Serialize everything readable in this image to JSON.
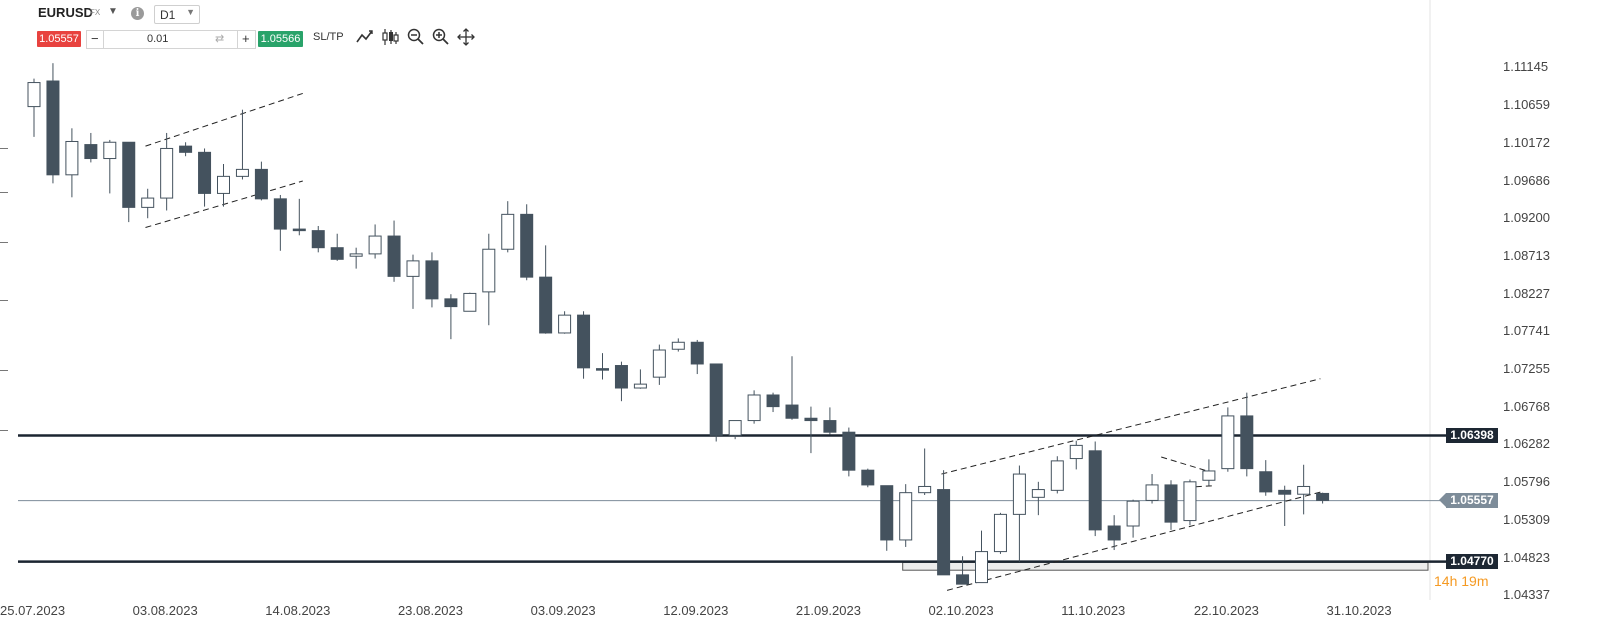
{
  "toolbar": {
    "symbol": "EURUSD",
    "market": "FX",
    "timeframe": "D1",
    "sell_price": "1.05557",
    "buy_price": "1.05566",
    "quantity": "0.01",
    "sltp_label": "SL/TP",
    "icons": [
      "chart-type-icon",
      "indicators-icon",
      "zoom-out-icon",
      "zoom-in-icon",
      "move-icon"
    ]
  },
  "colors": {
    "bear": "#44525e",
    "bull": "#ffffff",
    "sell": "#e8423f",
    "buy": "#29a36a",
    "timer": "#f59a23"
  },
  "chart_data": {
    "type": "candlestick",
    "title": "",
    "price_ticks": [
      "1.11145",
      "1.10659",
      "1.10172",
      "1.09686",
      "1.09200",
      "1.08713",
      "1.08227",
      "1.07741",
      "1.07255",
      "1.06768",
      "1.06282",
      "1.05796",
      "1.05309",
      "1.04823",
      "1.04337"
    ],
    "date_ticks": [
      "25.07.2023",
      "03.08.2023",
      "14.08.2023",
      "23.08.2023",
      "03.09.2023",
      "12.09.2023",
      "21.09.2023",
      "02.10.2023",
      "11.10.2023",
      "22.10.2023",
      "31.10.2023"
    ],
    "ylim": [
      1.0434,
      1.1137
    ],
    "horizontal_levels": [
      {
        "label": "1.06398",
        "value": 1.06398
      },
      {
        "label": "1.04770",
        "value": 1.0477
      }
    ],
    "current_price": {
      "label": "1.05557",
      "value": 1.05557
    },
    "support_zone": {
      "x_from_candle": 46,
      "x_to_candle": 73,
      "low": 1.0466,
      "high": 1.0476
    },
    "countdown": "14h 19m",
    "trendlines": [
      {
        "from": [
          6.2,
          1.1013
        ],
        "to": [
          14.5,
          1.1081
        ]
      },
      {
        "from": [
          6.2,
          1.0908
        ],
        "to": [
          14.5,
          1.0968
        ]
      },
      {
        "from": [
          48.2,
          1.059
        ],
        "to": [
          68.2,
          1.0713
        ]
      },
      {
        "from": [
          48.5,
          1.044
        ],
        "to": [
          68.4,
          1.0568
        ]
      },
      {
        "from": [
          59.8,
          1.0612
        ],
        "to": [
          62.5,
          1.0592
        ]
      },
      {
        "from": [
          61.1,
          1.0573
        ],
        "to": [
          62.6,
          1.0575
        ]
      }
    ],
    "candles": [
      {
        "o": 1.1064,
        "h": 1.11,
        "l": 1.1025,
        "c": 1.1095
      },
      {
        "o": 1.1097,
        "h": 1.112,
        "l": 1.0965,
        "c": 1.0976
      },
      {
        "o": 1.0976,
        "h": 1.1036,
        "l": 1.0947,
        "c": 1.1019
      },
      {
        "o": 1.1015,
        "h": 1.103,
        "l": 1.0992,
        "c": 1.0997
      },
      {
        "o": 1.0997,
        "h": 1.1021,
        "l": 1.0952,
        "c": 1.1018
      },
      {
        "o": 1.1018,
        "h": 1.1018,
        "l": 1.0915,
        "c": 1.0934
      },
      {
        "o": 1.0934,
        "h": 1.0958,
        "l": 1.092,
        "c": 1.0946
      },
      {
        "o": 1.0946,
        "h": 1.103,
        "l": 1.093,
        "c": 1.101
      },
      {
        "o": 1.1013,
        "h": 1.1018,
        "l": 1.1,
        "c": 1.1005
      },
      {
        "o": 1.1005,
        "h": 1.101,
        "l": 1.0935,
        "c": 1.0952
      },
      {
        "o": 1.0952,
        "h": 1.099,
        "l": 1.0935,
        "c": 1.0974
      },
      {
        "o": 1.0974,
        "h": 1.106,
        "l": 1.097,
        "c": 1.0983
      },
      {
        "o": 1.0983,
        "h": 1.0993,
        "l": 1.0943,
        "c": 1.0945
      },
      {
        "o": 1.0945,
        "h": 1.095,
        "l": 1.0878,
        "c": 1.0906
      },
      {
        "o": 1.0906,
        "h": 1.0945,
        "l": 1.0898,
        "c": 1.0904
      },
      {
        "o": 1.0904,
        "h": 1.091,
        "l": 1.0876,
        "c": 1.0882
      },
      {
        "o": 1.0882,
        "h": 1.09,
        "l": 1.0865,
        "c": 1.0867
      },
      {
        "o": 1.0871,
        "h": 1.0882,
        "l": 1.0855,
        "c": 1.0874
      },
      {
        "o": 1.0874,
        "h": 1.0912,
        "l": 1.0868,
        "c": 1.0897
      },
      {
        "o": 1.0897,
        "h": 1.0917,
        "l": 1.0838,
        "c": 1.0845
      },
      {
        "o": 1.0845,
        "h": 1.0873,
        "l": 1.0803,
        "c": 1.0865
      },
      {
        "o": 1.0865,
        "h": 1.0876,
        "l": 1.0805,
        "c": 1.0816
      },
      {
        "o": 1.0816,
        "h": 1.0822,
        "l": 1.0764,
        "c": 1.0806
      },
      {
        "o": 1.08,
        "h": 1.0824,
        "l": 1.08,
        "c": 1.0823
      },
      {
        "o": 1.0825,
        "h": 1.09,
        "l": 1.0782,
        "c": 1.088
      },
      {
        "o": 1.088,
        "h": 1.0942,
        "l": 1.0876,
        "c": 1.0925
      },
      {
        "o": 1.0925,
        "h": 1.0938,
        "l": 1.084,
        "c": 1.0844
      },
      {
        "o": 1.0844,
        "h": 1.0885,
        "l": 1.0771,
        "c": 1.0772
      },
      {
        "o": 1.0772,
        "h": 1.08,
        "l": 1.0771,
        "c": 1.0795
      },
      {
        "o": 1.0795,
        "h": 1.08,
        "l": 1.0713,
        "c": 1.0727
      },
      {
        "o": 1.0726,
        "h": 1.0746,
        "l": 1.0712,
        "c": 1.0724
      },
      {
        "o": 1.073,
        "h": 1.0735,
        "l": 1.0684,
        "c": 1.0701
      },
      {
        "o": 1.0701,
        "h": 1.0725,
        "l": 1.07,
        "c": 1.0706
      },
      {
        "o": 1.0715,
        "h": 1.0757,
        "l": 1.0705,
        "c": 1.075
      },
      {
        "o": 1.0751,
        "h": 1.0765,
        "l": 1.0748,
        "c": 1.076
      },
      {
        "o": 1.076,
        "h": 1.0763,
        "l": 1.0719,
        "c": 1.0732
      },
      {
        "o": 1.0732,
        "h": 1.0732,
        "l": 1.0632,
        "c": 1.064
      },
      {
        "o": 1.064,
        "h": 1.0655,
        "l": 1.0635,
        "c": 1.0659
      },
      {
        "o": 1.0659,
        "h": 1.0698,
        "l": 1.0655,
        "c": 1.0692
      },
      {
        "o": 1.0692,
        "h": 1.0695,
        "l": 1.067,
        "c": 1.0677
      },
      {
        "o": 1.0679,
        "h": 1.0742,
        "l": 1.066,
        "c": 1.0662
      },
      {
        "o": 1.0662,
        "h": 1.0677,
        "l": 1.0617,
        "c": 1.0659
      },
      {
        "o": 1.0659,
        "h": 1.0676,
        "l": 1.0641,
        "c": 1.0644
      },
      {
        "o": 1.0644,
        "h": 1.065,
        "l": 1.0587,
        "c": 1.0595
      },
      {
        "o": 1.0595,
        "h": 1.0597,
        "l": 1.0573,
        "c": 1.0576
      },
      {
        "o": 1.0575,
        "h": 1.0575,
        "l": 1.0491,
        "c": 1.0505
      },
      {
        "o": 1.0505,
        "h": 1.0577,
        "l": 1.0496,
        "c": 1.0566
      },
      {
        "o": 1.0566,
        "h": 1.0623,
        "l": 1.0563,
        "c": 1.0574
      },
      {
        "o": 1.057,
        "h": 1.0595,
        "l": 1.046,
        "c": 1.046
      },
      {
        "o": 1.046,
        "h": 1.0484,
        "l": 1.0449,
        "c": 1.0448
      },
      {
        "o": 1.045,
        "h": 1.0517,
        "l": 1.045,
        "c": 1.049
      },
      {
        "o": 1.049,
        "h": 1.054,
        "l": 1.0487,
        "c": 1.0538
      },
      {
        "o": 1.0538,
        "h": 1.0601,
        "l": 1.0477,
        "c": 1.059
      },
      {
        "o": 1.056,
        "h": 1.058,
        "l": 1.0537,
        "c": 1.057
      },
      {
        "o": 1.0569,
        "h": 1.0613,
        "l": 1.0565,
        "c": 1.0607
      },
      {
        "o": 1.061,
        "h": 1.0633,
        "l": 1.0596,
        "c": 1.0627
      },
      {
        "o": 1.062,
        "h": 1.0632,
        "l": 1.051,
        "c": 1.0518
      },
      {
        "o": 1.0523,
        "h": 1.0537,
        "l": 1.0492,
        "c": 1.0505
      },
      {
        "o": 1.0523,
        "h": 1.0557,
        "l": 1.0508,
        "c": 1.0555
      },
      {
        "o": 1.0556,
        "h": 1.059,
        "l": 1.0552,
        "c": 1.0576
      },
      {
        "o": 1.0576,
        "h": 1.0582,
        "l": 1.0518,
        "c": 1.0528
      },
      {
        "o": 1.053,
        "h": 1.0583,
        "l": 1.0524,
        "c": 1.058
      },
      {
        "o": 1.0582,
        "h": 1.0609,
        "l": 1.0575,
        "c": 1.0594
      },
      {
        "o": 1.0597,
        "h": 1.0676,
        "l": 1.0593,
        "c": 1.0665
      },
      {
        "o": 1.0665,
        "h": 1.0695,
        "l": 1.0587,
        "c": 1.0597
      },
      {
        "o": 1.0593,
        "h": 1.0608,
        "l": 1.0562,
        "c": 1.0567
      },
      {
        "o": 1.0569,
        "h": 1.0575,
        "l": 1.0523,
        "c": 1.0564
      },
      {
        "o": 1.0564,
        "h": 1.0602,
        "l": 1.0538,
        "c": 1.0574
      },
      {
        "o": 1.0565,
        "h": 1.0566,
        "l": 1.0552,
        "c": 1.0556
      }
    ]
  }
}
